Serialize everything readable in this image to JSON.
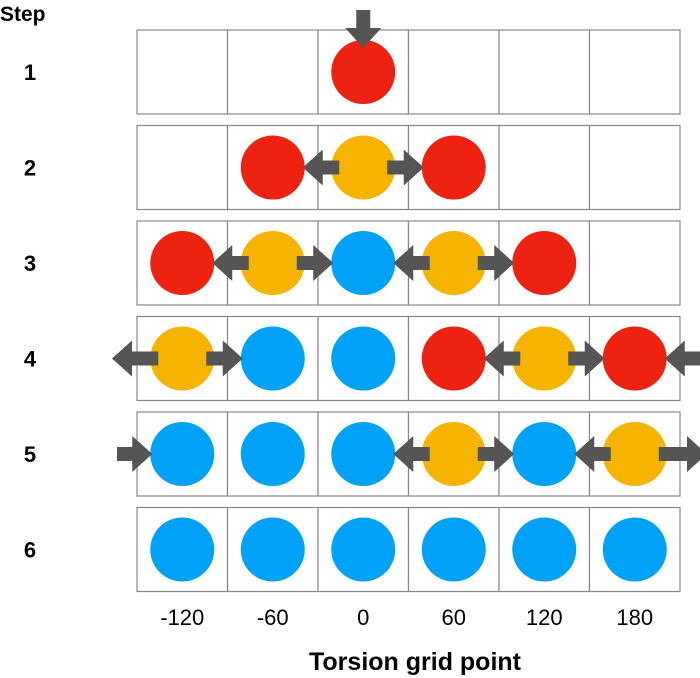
{
  "header": {
    "step_label": "Step"
  },
  "columns": [
    "-120",
    "-60",
    "0",
    "60",
    "120",
    "180"
  ],
  "x_axis_label": "Torsion grid point",
  "colors": {
    "red": "#ee2211",
    "orange": "#f6b400",
    "blue": "#00a2f7",
    "arrow": "#555555",
    "grid": "#888888"
  },
  "steps": [
    {
      "label": "1",
      "cells": [
        "",
        "",
        "red",
        "",
        "",
        ""
      ],
      "arrows": [
        {
          "type": "down",
          "col": 2
        }
      ]
    },
    {
      "label": "2",
      "cells": [
        "",
        "red",
        "orange",
        "red",
        "",
        ""
      ],
      "arrows": [
        {
          "type": "left",
          "from": 2,
          "to": 1
        },
        {
          "type": "right",
          "from": 2,
          "to": 3
        }
      ]
    },
    {
      "label": "3",
      "cells": [
        "red",
        "orange",
        "blue",
        "orange",
        "red",
        ""
      ],
      "arrows": [
        {
          "type": "left",
          "from": 1,
          "to": 0
        },
        {
          "type": "right",
          "from": 1,
          "to": 2
        },
        {
          "type": "left",
          "from": 3,
          "to": 2
        },
        {
          "type": "right",
          "from": 3,
          "to": 4
        }
      ]
    },
    {
      "label": "4",
      "cells": [
        "orange",
        "blue",
        "blue",
        "red",
        "orange",
        "red"
      ],
      "arrows": [
        {
          "type": "out-left",
          "from": 0
        },
        {
          "type": "right",
          "from": 0,
          "to": 1
        },
        {
          "type": "left",
          "from": 4,
          "to": 3
        },
        {
          "type": "right",
          "from": 4,
          "to": 5
        },
        {
          "type": "in-left",
          "to": 5
        }
      ]
    },
    {
      "label": "5",
      "cells": [
        "blue",
        "blue",
        "blue",
        "orange",
        "blue",
        "orange"
      ],
      "arrows": [
        {
          "type": "in-right",
          "to": 0
        },
        {
          "type": "left",
          "from": 3,
          "to": 2
        },
        {
          "type": "right",
          "from": 3,
          "to": 4
        },
        {
          "type": "left",
          "from": 5,
          "to": 4
        },
        {
          "type": "out-right",
          "from": 5
        }
      ]
    },
    {
      "label": "6",
      "cells": [
        "blue",
        "blue",
        "blue",
        "blue",
        "blue",
        "blue"
      ],
      "arrows": []
    }
  ]
}
